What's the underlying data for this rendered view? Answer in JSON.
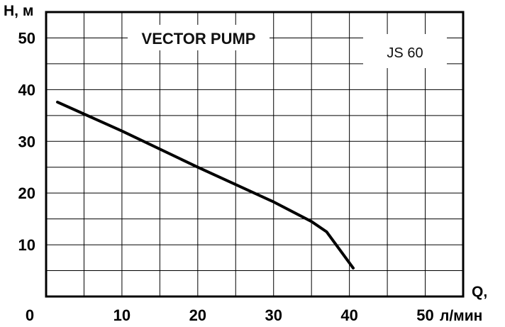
{
  "chart_data": {
    "type": "line",
    "title": "VECTOR PUMP",
    "model_label": "JS 60",
    "ylabel": "H, м",
    "xlabel": "Q,",
    "xunit": "л/мин",
    "origin_label": "0",
    "xlim": [
      0,
      55
    ],
    "ylim": [
      0,
      55
    ],
    "x_ticks": [
      10,
      20,
      30,
      40,
      50
    ],
    "y_ticks": [
      10,
      20,
      30,
      40,
      50
    ],
    "grid": true,
    "minor_step": 5,
    "series": [
      {
        "x": [
          1.5,
          10,
          20,
          30,
          35,
          37,
          40.5
        ],
        "y": [
          37.6,
          32,
          25,
          18.3,
          14.5,
          12.5,
          5.5
        ]
      }
    ],
    "colors": {
      "line": "#000000",
      "grid": "#000000",
      "background": "#ffffff"
    }
  }
}
